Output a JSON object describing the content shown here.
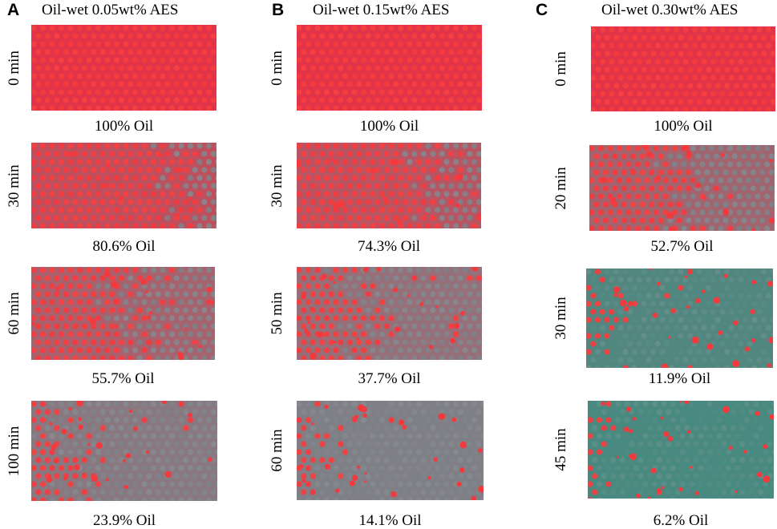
{
  "figure": {
    "panels": [
      {
        "letter": "A",
        "title": "Oil-wet 0.05wt% AES",
        "frames": [
          {
            "time": "0 min",
            "oil": "100% Oil",
            "oil_fraction": 1.0
          },
          {
            "time": "30 min",
            "oil": "80.6% Oil",
            "oil_fraction": 0.806
          },
          {
            "time": "60 min",
            "oil": "55.7% Oil",
            "oil_fraction": 0.557
          },
          {
            "time": "100 min",
            "oil": "23.9% Oil",
            "oil_fraction": 0.239
          }
        ]
      },
      {
        "letter": "B",
        "title": "Oil-wet 0.15wt% AES",
        "frames": [
          {
            "time": "0 min",
            "oil": "100% Oil",
            "oil_fraction": 1.0
          },
          {
            "time": "30 min",
            "oil": "74.3% Oil",
            "oil_fraction": 0.743
          },
          {
            "time": "50 min",
            "oil": "37.7% Oil",
            "oil_fraction": 0.377
          },
          {
            "time": "60 min",
            "oil": "14.1% Oil",
            "oil_fraction": 0.141
          }
        ]
      },
      {
        "letter": "C",
        "title": "Oil-wet 0.30wt% AES",
        "frames": [
          {
            "time": "0 min",
            "oil": "100% Oil",
            "oil_fraction": 1.0
          },
          {
            "time": "20 min",
            "oil": "52.7% Oil",
            "oil_fraction": 0.527
          },
          {
            "time": "30 min",
            "oil": "11.9% Oil",
            "oil_fraction": 0.119
          },
          {
            "time": "45 min",
            "oil": "6.2% Oil",
            "oil_fraction": 0.062
          }
        ]
      }
    ],
    "colors": {
      "oil": "#f23a3e",
      "swept_gray": "#7d8288",
      "swept_teal": "#3f8a7e",
      "background": "#ffffff"
    }
  }
}
